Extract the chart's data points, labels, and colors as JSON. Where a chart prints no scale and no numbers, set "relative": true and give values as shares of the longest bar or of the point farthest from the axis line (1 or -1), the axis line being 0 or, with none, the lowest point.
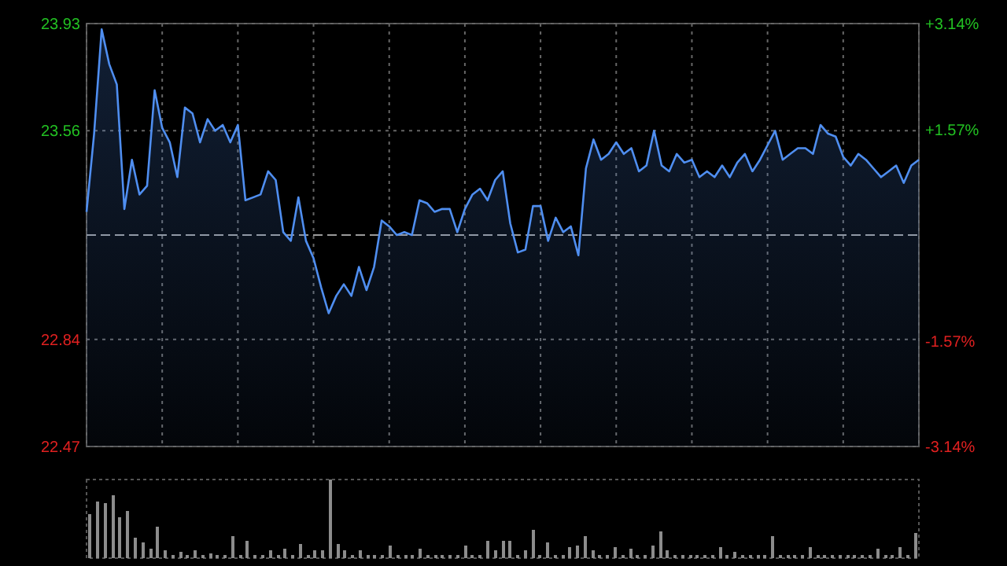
{
  "chart_data": [
    {
      "type": "area",
      "color": "#4f8ef0",
      "categories": [
        null,
        null,
        null,
        null,
        null,
        null,
        null,
        null,
        null,
        null,
        null,
        null,
        null,
        null,
        null,
        null,
        null,
        null,
        null,
        null,
        null,
        null,
        null,
        null,
        null,
        null,
        null,
        null,
        null,
        null,
        null,
        null,
        null,
        null,
        null,
        null,
        null,
        null,
        null,
        null,
        null,
        null,
        null,
        null,
        null,
        null,
        null,
        null,
        null,
        null,
        null,
        null,
        null,
        null,
        null,
        null,
        null,
        null,
        null,
        null,
        null,
        null,
        null,
        null,
        null,
        null,
        null,
        null,
        null,
        null,
        null,
        null,
        null,
        null,
        null,
        null,
        null,
        null,
        null,
        null,
        null,
        null,
        null,
        null,
        null,
        null,
        null,
        null,
        null,
        null,
        null,
        null,
        null,
        null,
        null,
        null,
        null,
        null,
        null,
        null,
        null,
        null,
        null,
        null,
        null,
        null,
        null,
        null,
        null,
        null,
        null
      ],
      "ylim": [
        22.47,
        23.93
      ],
      "yticks": [
        22.47,
        22.84,
        23.56,
        23.93
      ],
      "y2lim": [
        -3.14,
        3.14
      ],
      "y2ticks": [
        {
          "value": -3.14,
          "label": "-3.14%"
        },
        {
          "value": -1.57,
          "label": "-1.57%"
        },
        {
          "value": 1.57,
          "label": "+1.57%"
        },
        {
          "value": 3.14,
          "label": "+3.14%"
        }
      ],
      "ref_lines": [
        {
          "axis": "y",
          "value": 23.2,
          "label": null,
          "line_style": "dashed",
          "color": "#9a9a9a"
        }
      ],
      "grid": true,
      "line_style": "solid",
      "values": [
        23.28,
        23.55,
        23.91,
        23.79,
        23.72,
        23.29,
        23.46,
        23.34,
        23.37,
        23.7,
        23.57,
        23.52,
        23.4,
        23.64,
        23.62,
        23.52,
        23.6,
        23.56,
        23.58,
        23.52,
        23.58,
        23.32,
        23.33,
        23.34,
        23.42,
        23.39,
        23.21,
        23.18,
        23.33,
        23.18,
        23.12,
        23.02,
        22.93,
        22.99,
        23.03,
        22.99,
        23.09,
        23.01,
        23.09,
        23.25,
        23.23,
        23.2,
        23.21,
        23.2,
        23.32,
        23.31,
        23.28,
        23.29,
        23.29,
        23.21,
        23.29,
        23.34,
        23.36,
        23.32,
        23.39,
        23.42,
        23.24,
        23.14,
        23.15,
        23.3,
        23.3,
        23.18,
        23.26,
        23.21,
        23.23,
        23.13,
        23.43,
        23.53,
        23.46,
        23.48,
        23.52,
        23.48,
        23.5,
        23.42,
        23.44,
        23.56,
        23.44,
        23.42,
        23.48,
        23.45,
        23.46,
        23.4,
        23.42,
        23.4,
        23.44,
        23.4,
        23.45,
        23.48,
        23.42,
        23.46,
        23.51,
        23.56,
        23.46,
        23.48,
        23.5,
        23.5,
        23.48,
        23.58,
        23.55,
        23.54,
        23.47,
        23.44,
        23.48,
        23.46,
        23.43,
        23.4,
        23.42,
        23.44,
        23.38,
        23.44,
        23.46
      ]
    },
    {
      "type": "bar",
      "relative": true,
      "color": "#8c8c8c",
      "categories": [
        null,
        null,
        null,
        null,
        null,
        null,
        null,
        null,
        null,
        null,
        null,
        null,
        null,
        null,
        null,
        null,
        null,
        null,
        null,
        null,
        null,
        null,
        null,
        null,
        null,
        null,
        null,
        null,
        null,
        null,
        null,
        null,
        null,
        null,
        null,
        null,
        null,
        null,
        null,
        null,
        null,
        null,
        null,
        null,
        null,
        null,
        null,
        null,
        null,
        null,
        null,
        null,
        null,
        null,
        null,
        null,
        null,
        null,
        null,
        null,
        null,
        null,
        null,
        null,
        null,
        null,
        null,
        null,
        null,
        null,
        null,
        null,
        null,
        null,
        null,
        null,
        null,
        null,
        null,
        null,
        null,
        null,
        null,
        null,
        null,
        null,
        null,
        null,
        null,
        null,
        null,
        null,
        null,
        null,
        null,
        null,
        null,
        null,
        null,
        null,
        null,
        null,
        null,
        null,
        null,
        null,
        null,
        null,
        null,
        null,
        null
      ],
      "values": [
        0.57,
        0.73,
        0.7,
        0.8,
        0.53,
        0.6,
        0.27,
        0.2,
        0.13,
        0.4,
        0.1,
        0.04,
        0.08,
        0.04,
        0.1,
        0.04,
        0.07,
        0.04,
        0.04,
        0.28,
        0.04,
        0.23,
        0.04,
        0.04,
        0.1,
        0.04,
        0.12,
        0.04,
        0.18,
        0.04,
        0.1,
        0.1,
        1,
        0.19,
        0.1,
        0.04,
        0.1,
        0.04,
        0.04,
        0.04,
        0.17,
        0.04,
        0.04,
        0.04,
        0.13,
        0.04,
        0.04,
        0.04,
        0.04,
        0.04,
        0.17,
        0.04,
        0.04,
        0.22,
        0.11,
        0.23,
        0.23,
        0.04,
        0.1,
        0.37,
        0.04,
        0.2,
        0.04,
        0.04,
        0.15,
        0.17,
        0.29,
        0.1,
        0.04,
        0.04,
        0.15,
        0.04,
        0.12,
        0.04,
        0.04,
        0.17,
        0.35,
        0.1,
        0.04,
        0.05,
        0.04,
        0.04,
        0.04,
        0.04,
        0.15,
        0.04,
        0.08,
        0.04,
        0.04,
        0.04,
        0.04,
        0.29,
        0.04,
        0.04,
        0.04,
        0.04,
        0.15,
        0.04,
        0.04,
        0.04,
        0.05,
        0.04,
        0.04,
        0.04,
        0.04,
        0.12,
        0.04,
        0.05,
        0.15,
        0.04,
        0.33
      ]
    }
  ]
}
